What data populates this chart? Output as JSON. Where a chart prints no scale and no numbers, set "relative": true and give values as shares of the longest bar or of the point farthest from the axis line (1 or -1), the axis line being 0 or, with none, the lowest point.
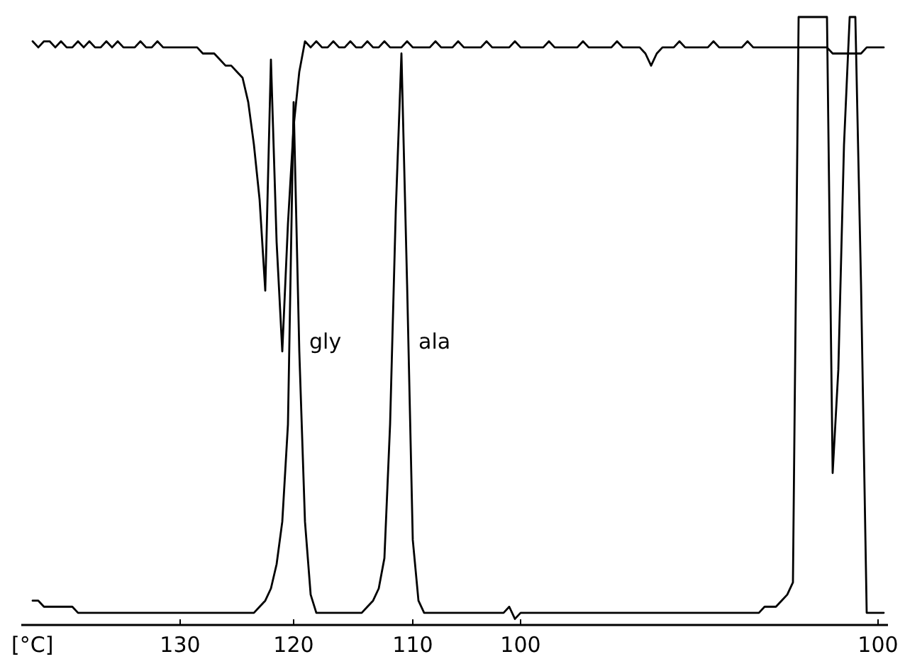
{
  "chart_data": {
    "type": "line",
    "relative": true,
    "xlabel": "[°C]",
    "annotations": [
      "gly",
      "ala"
    ],
    "line_style": "solid",
    "marker": "none",
    "grid": false,
    "categories": [
      null,
      null,
      null,
      null,
      null,
      null,
      null,
      null,
      null,
      null,
      null,
      null,
      null,
      null,
      null,
      null,
      null,
      null,
      null,
      null,
      null,
      null,
      null,
      null,
      null,
      null,
      "130",
      null,
      null,
      null,
      null,
      null,
      null,
      null,
      null,
      null,
      null,
      null,
      null,
      null,
      null,
      null,
      null,
      null,
      null,
      null,
      "120",
      null,
      null,
      null,
      null,
      null,
      null,
      null,
      null,
      null,
      null,
      null,
      null,
      null,
      null,
      null,
      null,
      null,
      null,
      null,
      null,
      "110",
      null,
      null,
      null,
      null,
      null,
      null,
      null,
      null,
      null,
      null,
      null,
      null,
      null,
      null,
      null,
      null,
      null,
      null,
      "100",
      null,
      null,
      null,
      null,
      null,
      null,
      null,
      null,
      null,
      null,
      null,
      null,
      null,
      null,
      null,
      null,
      null,
      null,
      null,
      null,
      null,
      null,
      null,
      null,
      null,
      null,
      null,
      null,
      null,
      null,
      null,
      null,
      null,
      null,
      null,
      null,
      null,
      null,
      null,
      null,
      null,
      null,
      null,
      null,
      null,
      null,
      null,
      null,
      null,
      null,
      null,
      null,
      null,
      null,
      null,
      null,
      null,
      null,
      null,
      null,
      null,
      null,
      "100",
      null
    ],
    "series": [
      {
        "color": "#000000",
        "values": [
          0.04,
          0.04,
          0.03,
          0.03,
          0.03,
          0.03,
          0.03,
          0.03,
          0.02,
          0.02,
          0.02,
          0.02,
          0.02,
          0.02,
          0.02,
          0.02,
          0.02,
          0.02,
          0.02,
          0.02,
          0.02,
          0.02,
          0.02,
          0.02,
          0.02,
          0.02,
          0.02,
          0.02,
          0.02,
          0.02,
          0.02,
          0.02,
          0.02,
          0.02,
          0.02,
          0.02,
          0.02,
          0.02,
          0.02,
          0.02,
          0.03,
          0.04,
          0.06,
          0.1,
          0.17,
          0.33,
          0.86,
          0.45,
          0.17,
          0.05,
          0.02,
          0.02,
          0.02,
          0.02,
          0.02,
          0.02,
          0.02,
          0.02,
          0.02,
          0.03,
          0.04,
          0.06,
          0.11,
          0.33,
          0.68,
          0.94,
          0.56,
          0.14,
          0.04,
          0.02,
          0.02,
          0.02,
          0.02,
          0.02,
          0.02,
          0.02,
          0.02,
          0.02,
          0.02,
          0.02,
          0.02,
          0.02,
          0.02,
          0.02,
          0.03,
          0.01,
          0.02,
          0.02,
          0.02,
          0.02,
          0.02,
          0.02,
          0.02,
          0.02,
          0.02,
          0.02,
          0.02,
          0.02,
          0.02,
          0.02,
          0.02,
          0.02,
          0.02,
          0.02,
          0.02,
          0.02,
          0.02,
          0.02,
          0.02,
          0.02,
          0.02,
          0.02,
          0.02,
          0.02,
          0.02,
          0.02,
          0.02,
          0.02,
          0.02,
          0.02,
          0.02,
          0.02,
          0.02,
          0.02,
          0.02,
          0.02,
          0.02,
          0.02,
          0.02,
          0.03,
          0.03,
          0.03,
          0.04,
          0.05,
          0.07,
          1,
          1,
          1,
          1,
          1,
          1,
          0.25,
          0.42,
          0.79,
          1,
          1,
          0.56,
          0.02,
          0.02,
          0.02,
          0.02
        ]
      },
      {
        "color": "#000000",
        "values": [
          0.96,
          0.95,
          0.96,
          0.96,
          0.95,
          0.96,
          0.95,
          0.95,
          0.96,
          0.95,
          0.96,
          0.95,
          0.95,
          0.96,
          0.95,
          0.96,
          0.95,
          0.95,
          0.95,
          0.96,
          0.95,
          0.95,
          0.96,
          0.95,
          0.95,
          0.95,
          0.95,
          0.95,
          0.95,
          0.95,
          0.94,
          0.94,
          0.94,
          0.93,
          0.92,
          0.92,
          0.91,
          0.9,
          0.86,
          0.79,
          0.7,
          0.55,
          0.93,
          0.63,
          0.45,
          0.66,
          0.82,
          0.91,
          0.96,
          0.95,
          0.96,
          0.95,
          0.95,
          0.96,
          0.95,
          0.95,
          0.96,
          0.95,
          0.95,
          0.96,
          0.95,
          0.95,
          0.96,
          0.95,
          0.95,
          0.95,
          0.96,
          0.95,
          0.95,
          0.95,
          0.95,
          0.96,
          0.95,
          0.95,
          0.95,
          0.96,
          0.95,
          0.95,
          0.95,
          0.95,
          0.96,
          0.95,
          0.95,
          0.95,
          0.95,
          0.96,
          0.95,
          0.95,
          0.95,
          0.95,
          0.95,
          0.96,
          0.95,
          0.95,
          0.95,
          0.95,
          0.95,
          0.96,
          0.95,
          0.95,
          0.95,
          0.95,
          0.95,
          0.96,
          0.95,
          0.95,
          0.95,
          0.95,
          0.94,
          0.92,
          0.94,
          0.95,
          0.95,
          0.95,
          0.96,
          0.95,
          0.95,
          0.95,
          0.95,
          0.95,
          0.96,
          0.95,
          0.95,
          0.95,
          0.95,
          0.95,
          0.96,
          0.95,
          0.95,
          0.95,
          0.95,
          0.95,
          0.95,
          0.95,
          0.95,
          0.95,
          0.95,
          0.95,
          0.95,
          0.95,
          0.95,
          0.94,
          0.94,
          0.94,
          0.94,
          0.94,
          0.94,
          0.95,
          0.95,
          0.95,
          0.95
        ]
      }
    ]
  }
}
